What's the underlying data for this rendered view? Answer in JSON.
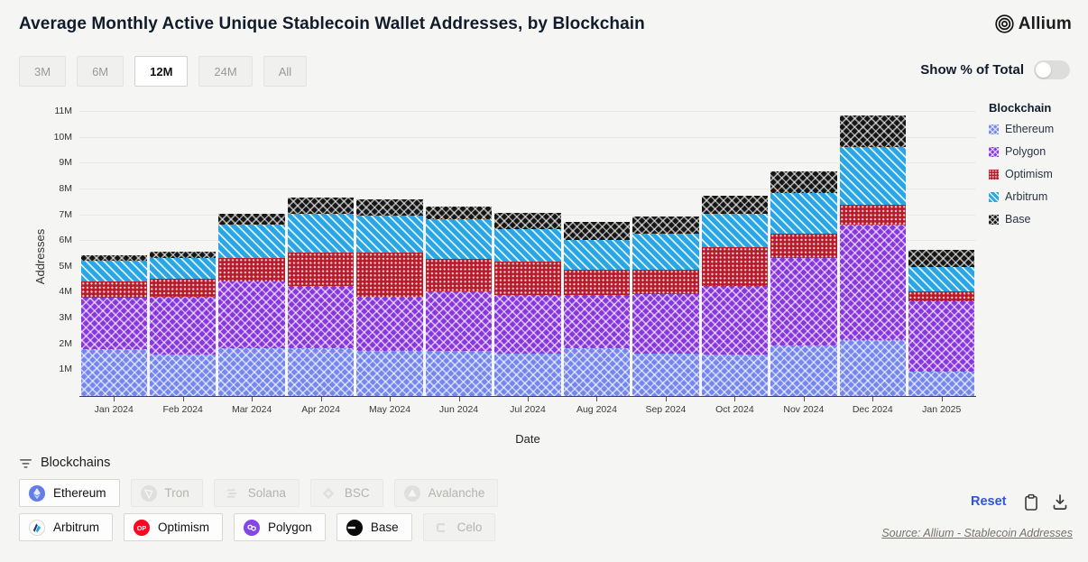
{
  "header": {
    "title": "Average Monthly Active Unique Stablecoin Wallet Addresses, by Blockchain",
    "brand": "Allium"
  },
  "controls": {
    "time_ranges": [
      {
        "label": "3M",
        "active": false
      },
      {
        "label": "6M",
        "active": false
      },
      {
        "label": "12M",
        "active": true
      },
      {
        "label": "24M",
        "active": false
      },
      {
        "label": "All",
        "active": false
      }
    ],
    "toggle_label": "Show % of Total",
    "toggle_on": false
  },
  "chart_data": {
    "type": "bar",
    "stacked": true,
    "title": "Average Monthly Active Unique Stablecoin Wallet Addresses, by Blockchain",
    "xlabel": "Date",
    "ylabel": "Addresses",
    "unit": "millions",
    "grid": true,
    "legend_title": "Blockchain",
    "legend_position": "right",
    "ylim": [
      0,
      11.5
    ],
    "yticks": [
      1,
      2,
      3,
      4,
      5,
      6,
      7,
      8,
      9,
      10,
      11
    ],
    "ytick_suffix": "M",
    "categories": [
      "Jan 2024",
      "Feb 2024",
      "Mar 2024",
      "Apr 2024",
      "May 2024",
      "Jun 2024",
      "Jul 2024",
      "Aug 2024",
      "Sep 2024",
      "Oct 2024",
      "Nov 2024",
      "Dec 2024",
      "Jan 2025"
    ],
    "series": [
      {
        "name": "Ethereum",
        "color": "#7587ef",
        "pattern": "lattice",
        "values": [
          1.8,
          1.6,
          1.85,
          1.85,
          1.75,
          1.75,
          1.65,
          1.85,
          1.65,
          1.6,
          1.95,
          2.15,
          0.95
        ]
      },
      {
        "name": "Polygon",
        "color": "#8836dd",
        "pattern": "lattice",
        "values": [
          2.0,
          2.25,
          2.6,
          2.4,
          2.1,
          2.3,
          2.25,
          2.05,
          2.3,
          2.65,
          3.4,
          4.5,
          2.7
        ]
      },
      {
        "name": "Optimism",
        "color": "#b71c2c",
        "pattern": "dots",
        "values": [
          0.65,
          0.7,
          0.9,
          1.3,
          1.7,
          1.25,
          1.3,
          1.0,
          0.95,
          1.5,
          0.95,
          0.75,
          0.4
        ]
      },
      {
        "name": "Arbitrum",
        "color": "#2aa6e6",
        "pattern": "stripes",
        "values": [
          0.8,
          0.8,
          1.3,
          1.5,
          1.45,
          1.55,
          1.25,
          1.15,
          1.4,
          1.3,
          1.55,
          2.25,
          0.95
        ]
      },
      {
        "name": "Base",
        "color": "#161616",
        "pattern": "lattice",
        "values": [
          0.2,
          0.25,
          0.4,
          0.65,
          0.6,
          0.5,
          0.65,
          0.7,
          0.65,
          0.7,
          0.85,
          1.2,
          0.65
        ]
      }
    ],
    "totals": [
      5.45,
      5.6,
      7.05,
      7.7,
      7.6,
      7.35,
      7.1,
      6.75,
      6.95,
      7.75,
      8.7,
      10.85,
      5.65
    ]
  },
  "filters": {
    "label": "Blockchains",
    "chains": [
      {
        "name": "Ethereum",
        "enabled": true,
        "row": 1
      },
      {
        "name": "Tron",
        "enabled": false,
        "row": 1
      },
      {
        "name": "Solana",
        "enabled": false,
        "row": 1
      },
      {
        "name": "BSC",
        "enabled": false,
        "row": 1
      },
      {
        "name": "Avalanche",
        "enabled": false,
        "row": 1
      },
      {
        "name": "Arbitrum",
        "enabled": true,
        "row": 2
      },
      {
        "name": "Optimism",
        "enabled": true,
        "row": 2
      },
      {
        "name": "Polygon",
        "enabled": true,
        "row": 2
      },
      {
        "name": "Base",
        "enabled": true,
        "row": 2
      },
      {
        "name": "Celo",
        "enabled": false,
        "row": 2
      }
    ]
  },
  "footer": {
    "reset_label": "Reset",
    "copy_icon": "clipboard-icon",
    "download_icon": "download-icon",
    "source": "Source: Allium - Stablecoin Addresses"
  }
}
